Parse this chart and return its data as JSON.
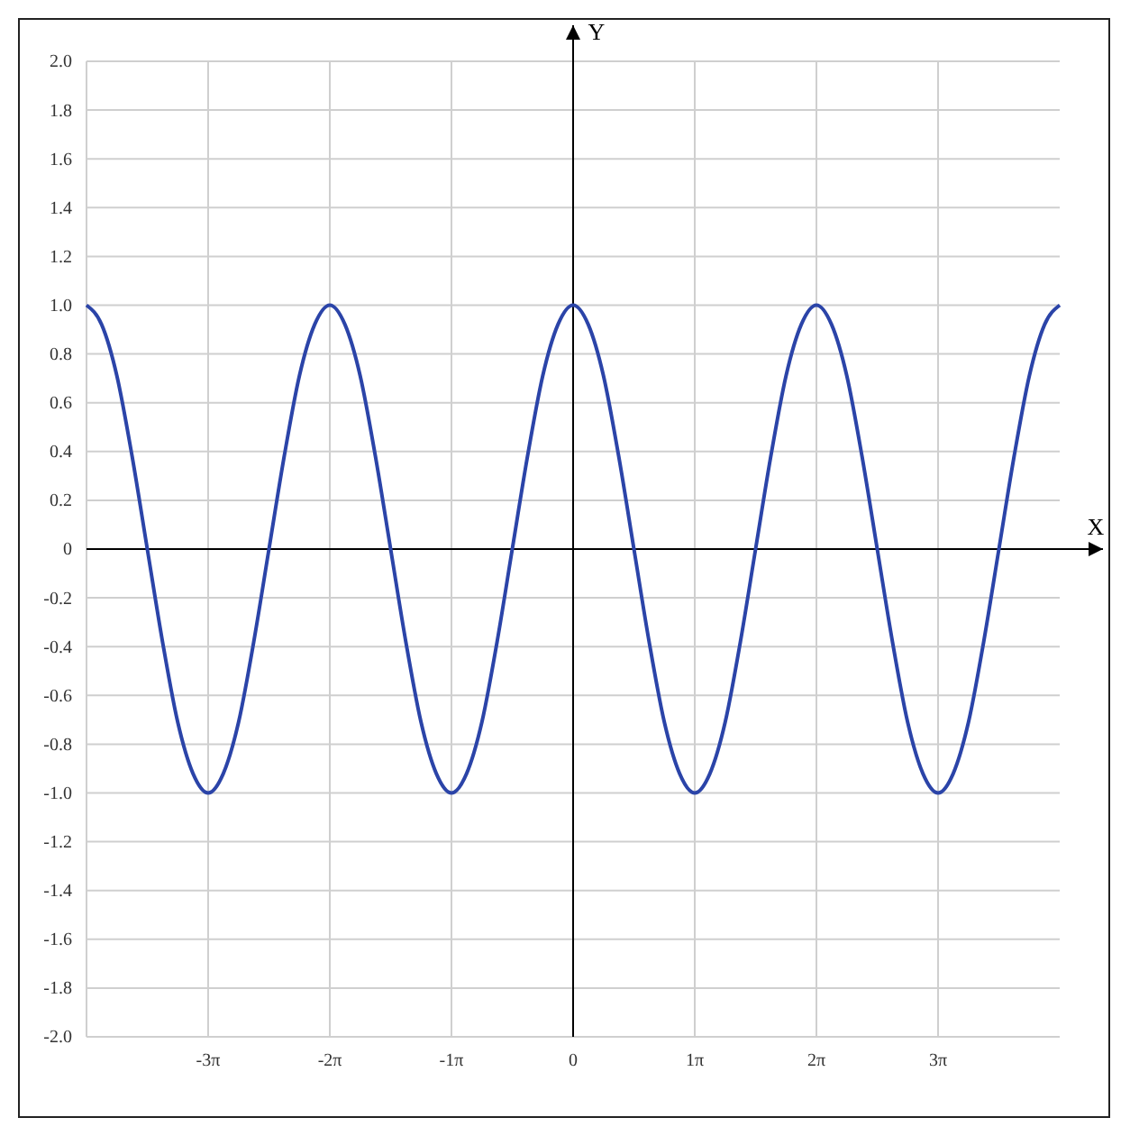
{
  "chart_data": {
    "type": "line",
    "xlabel": "X",
    "ylabel": "Y",
    "x": [
      -12.566,
      -12.174,
      -11.781,
      -11.388,
      -10.996,
      -10.603,
      -10.21,
      -9.817,
      -9.425,
      -9.032,
      -8.639,
      -8.247,
      -7.854,
      -7.461,
      -7.069,
      -6.676,
      -6.283,
      -5.89,
      -5.498,
      -5.105,
      -4.712,
      -4.32,
      -3.927,
      -3.534,
      -3.142,
      -2.749,
      -2.356,
      -1.963,
      -1.571,
      -1.178,
      -0.785,
      -0.393,
      0,
      0.393,
      0.785,
      1.178,
      1.571,
      1.963,
      2.356,
      2.749,
      3.142,
      3.534,
      3.927,
      4.32,
      4.712,
      5.105,
      5.498,
      5.89,
      6.283,
      6.676,
      7.069,
      7.461,
      7.854,
      8.247,
      8.639,
      9.032,
      9.425,
      9.817,
      10.21,
      10.603,
      10.996,
      11.388,
      11.781,
      12.174,
      12.566
    ],
    "series": [
      {
        "color": "#2b44a8",
        "values": [
          1,
          0.92,
          0.71,
          0.38,
          0,
          -0.38,
          -0.71,
          -0.92,
          -1,
          -0.92,
          -0.71,
          -0.38,
          0,
          0.38,
          0.71,
          0.92,
          1,
          0.92,
          0.71,
          0.38,
          0,
          -0.38,
          -0.71,
          -0.92,
          -1,
          -0.92,
          -0.71,
          -0.38,
          0,
          0.38,
          0.71,
          0.92,
          1,
          0.92,
          0.71,
          0.38,
          0,
          -0.38,
          -0.71,
          -0.92,
          -1,
          -0.92,
          -0.71,
          -0.38,
          0,
          0.38,
          0.71,
          0.92,
          1,
          0.92,
          0.71,
          0.38,
          0,
          -0.38,
          -0.71,
          -0.92,
          -1,
          -0.92,
          -0.71,
          -0.38,
          0,
          0.38,
          0.71,
          0.92,
          1
        ]
      }
    ],
    "xlim": [
      -12.566,
      12.566
    ],
    "xticks": [
      {
        "value": -9.425,
        "label": "-3π"
      },
      {
        "value": -6.283,
        "label": "-2π"
      },
      {
        "value": -3.142,
        "label": "-1π"
      },
      0,
      {
        "value": 3.142,
        "label": "1π"
      },
      {
        "value": 6.283,
        "label": "2π"
      },
      {
        "value": 9.425,
        "label": "3π"
      }
    ],
    "ylim": [
      -2,
      2
    ],
    "yticks": [
      {
        "value": -2,
        "label": "-2.0"
      },
      -1.8,
      -1.6,
      -1.4,
      -1.2,
      {
        "value": -1,
        "label": "-1.0"
      },
      -0.8,
      -0.6,
      -0.4,
      -0.2,
      0,
      0.2,
      0.4,
      0.6,
      0.8,
      {
        "value": 1,
        "label": "1.0"
      },
      1.2,
      1.4,
      1.6,
      1.8,
      {
        "value": 2,
        "label": "2.0"
      }
    ],
    "grid": true,
    "marker": "none",
    "line_style": "solid"
  }
}
